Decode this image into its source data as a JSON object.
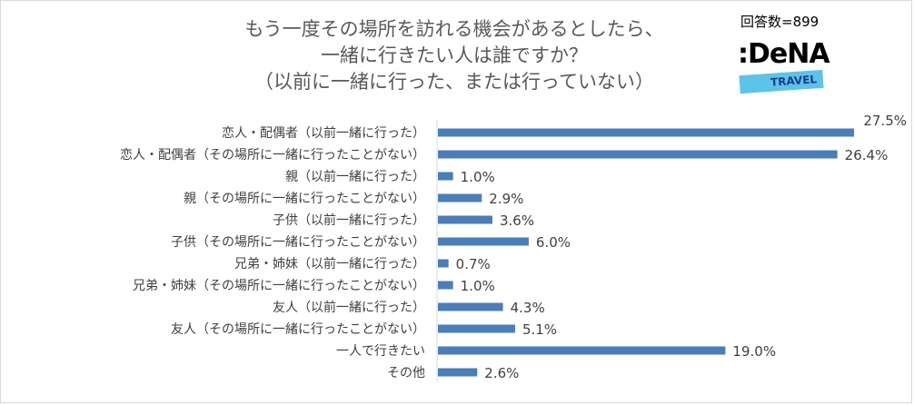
{
  "header": {
    "title_lines": [
      "もう一度その場所を訪れる機会があるとしたら、",
      "一緒に行きたい人は誰ですか？",
      "（以前に一緒に行った、または行っていない）"
    ],
    "respondents": "回答数=899",
    "logo": {
      "text": ":DeNA",
      "subtext": "TRAVEL",
      "band_color": "#5bc4e8"
    }
  },
  "chart_data": {
    "type": "bar",
    "orientation": "horizontal",
    "categories": [
      "恋人・配偶者（以前一緒に行った）",
      "恋人・配偶者（その場所に一緒に行ったことがない）",
      "親（以前一緒に行った）",
      "親（その場所に一緒に行ったことがない）",
      "子供（以前一緒に行った）",
      "子供（その場所に一緒に行ったことがない）",
      "兄弟・姉妹（以前一緒に行った）",
      "兄弟・姉妹（その場所に一緒に行ったことがない）",
      "友人（以前一緒に行った）",
      "友人（その場所に一緒に行ったことがない）",
      "一人で行きたい",
      "その他"
    ],
    "values": [
      27.5,
      26.4,
      1.0,
      2.9,
      3.6,
      6.0,
      0.7,
      1.0,
      4.3,
      5.1,
      19.0,
      2.6
    ],
    "value_labels": [
      "27.5%",
      "26.4%",
      "1.0%",
      "2.9%",
      "3.6%",
      "6.0%",
      "0.7%",
      "1.0%",
      "4.3%",
      "5.1%",
      "19.0%",
      "2.6%"
    ],
    "unit": "%",
    "xlim": [
      0,
      30
    ],
    "bar_color": "#4a7ebb",
    "grid": false,
    "legend": "none"
  }
}
